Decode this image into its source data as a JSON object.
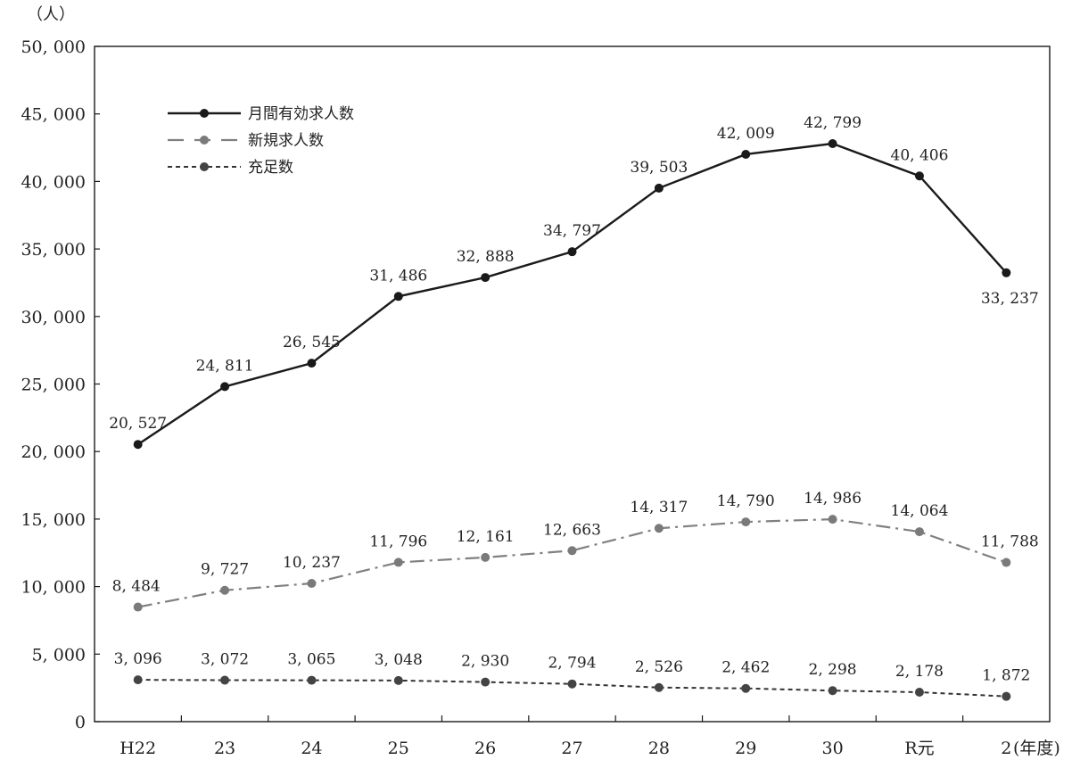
{
  "chart_data": {
    "type": "line",
    "y_unit_label": "（人）",
    "x_unit_label": "(年度)",
    "categories": [
      "H22",
      "23",
      "24",
      "25",
      "26",
      "27",
      "28",
      "29",
      "30",
      "R元",
      "2"
    ],
    "ylim": [
      0,
      50000
    ],
    "y_ticks": [
      0,
      5000,
      10000,
      15000,
      20000,
      25000,
      30000,
      35000,
      40000,
      45000,
      50000
    ],
    "y_tick_labels": [
      "0",
      "5, 000",
      "10, 000",
      "15, 000",
      "20, 000",
      "25, 000",
      "30, 000",
      "35, 000",
      "40, 000",
      "45, 000",
      "50, 000"
    ],
    "grid": false,
    "legend_position": "top-left",
    "series": [
      {
        "name": "月間有効求人数",
        "color": "#1a1a1a",
        "marker_color": "#1a1a1a",
        "line_style": "solid",
        "values": [
          20527,
          24811,
          26545,
          31486,
          32888,
          34797,
          39503,
          42009,
          42799,
          40406,
          33237
        ],
        "labels": [
          "20, 527",
          "24, 811",
          "26, 545",
          "31, 486",
          "32, 888",
          "34, 797",
          "39, 503",
          "42, 009",
          "42, 799",
          "40, 406",
          "33, 237"
        ]
      },
      {
        "name": "新規求人数",
        "color": "#808080",
        "marker_color": "#7a7a7a",
        "line_style": "dashdot",
        "values": [
          8484,
          9727,
          10237,
          11796,
          12161,
          12663,
          14317,
          14790,
          14986,
          14064,
          11788
        ],
        "labels": [
          "8, 484",
          "9, 727",
          "10, 237",
          "11, 796",
          "12, 161",
          "12, 663",
          "14, 317",
          "14, 790",
          "14, 986",
          "14, 064",
          "11, 788"
        ]
      },
      {
        "name": "充足数",
        "color": "#333333",
        "marker_color": "#444444",
        "line_style": "dotted",
        "values": [
          3096,
          3072,
          3065,
          3048,
          2930,
          2794,
          2526,
          2462,
          2298,
          2178,
          1872
        ],
        "labels": [
          "3, 096",
          "3, 072",
          "3, 065",
          "3, 048",
          "2, 930",
          "2, 794",
          "2, 526",
          "2, 462",
          "2, 298",
          "2, 178",
          "1, 872"
        ]
      }
    ]
  }
}
